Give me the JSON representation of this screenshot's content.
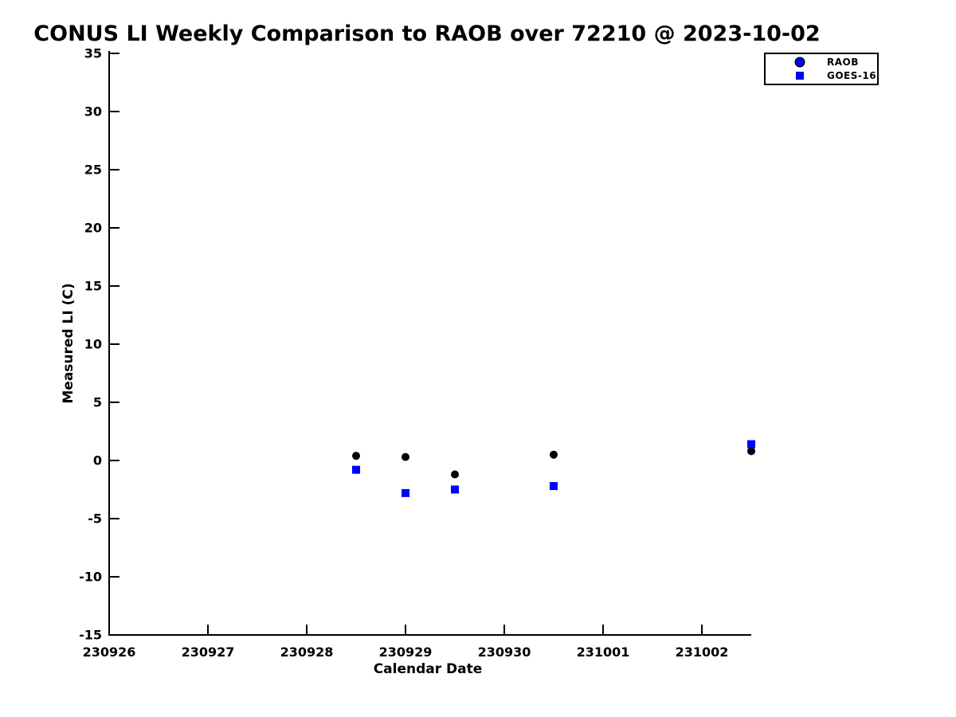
{
  "chart_data": {
    "type": "scatter",
    "title": "CONUS LI Weekly Comparison to RAOB over 72210 @ 2023-10-02",
    "xlabel": "Calendar Date",
    "ylabel": "Measured LI (C)",
    "x_tick_labels": [
      "230926",
      "230927",
      "230928",
      "230929",
      "230930",
      "231001",
      "231002"
    ],
    "x_tick_positions": [
      0,
      1,
      2,
      3,
      4,
      5,
      6
    ],
    "xlim": [
      0,
      6.5
    ],
    "y_ticks": [
      35,
      30,
      25,
      20,
      15,
      10,
      5,
      0,
      -5,
      -10,
      -15
    ],
    "ylim": [
      -15,
      35
    ],
    "grid": false,
    "background_color": "#ffffff",
    "axis_color": "#000000",
    "legend": {
      "position": "top-right",
      "entries": [
        {
          "label": "RAOB",
          "marker": "circle",
          "fill": "#0000ff",
          "edge": "#000000"
        },
        {
          "label": "GOES-16",
          "marker": "square",
          "fill": "#0000ff"
        }
      ]
    },
    "series": [
      {
        "name": "RAOB",
        "marker": "circle",
        "color": "#000000",
        "marker_size_px": 10,
        "x": [
          2.5,
          3.0,
          3.5,
          4.5,
          6.5
        ],
        "x_as_dates": [
          "230928.5",
          "230929.0",
          "230929.5",
          "230930.5",
          "231002.5"
        ],
        "y": [
          0.4,
          0.3,
          -1.2,
          0.5,
          0.8
        ]
      },
      {
        "name": "GOES-16",
        "marker": "square",
        "color": "#0000ff",
        "marker_size_px": 10,
        "x": [
          2.5,
          3.0,
          3.5,
          4.5,
          6.5
        ],
        "x_as_dates": [
          "230928.5",
          "230929.0",
          "230929.5",
          "230930.5",
          "231002.5"
        ],
        "y": [
          -0.8,
          -2.8,
          -2.5,
          -2.2,
          1.4
        ]
      }
    ]
  }
}
